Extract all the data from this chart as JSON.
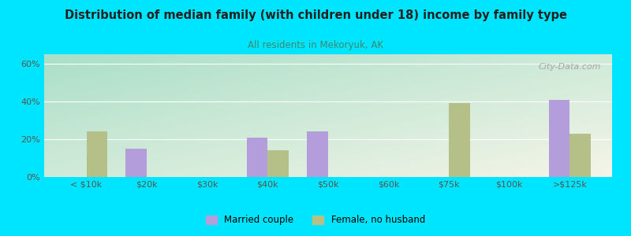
{
  "title": "Distribution of median family (with children under 18) income by family type",
  "subtitle": "All residents in Mekoryuk, AK",
  "categories": [
    "< $10k",
    "$20k",
    "$30k",
    "$40k",
    "$50k",
    "$60k",
    "$75k",
    "$100k",
    ">$125k"
  ],
  "married_couple": [
    0,
    15,
    0,
    21,
    24,
    0,
    0,
    0,
    41
  ],
  "female_no_husband": [
    24,
    0,
    0,
    14,
    0,
    0,
    39,
    0,
    23
  ],
  "married_color": "#b39ddb",
  "female_color": "#b5bf88",
  "bg_color": "#00e5ff",
  "title_color": "#212121",
  "subtitle_color": "#3a8a6e",
  "ylabel_ticks": [
    "0%",
    "20%",
    "40%",
    "60%"
  ],
  "yticks": [
    0,
    20,
    40,
    60
  ],
  "ylim": [
    0,
    65
  ],
  "bar_width": 0.35,
  "watermark": "City-Data.com",
  "gradient_top_left": "#aadfc8",
  "gradient_bottom_right": "#f5f5e8"
}
